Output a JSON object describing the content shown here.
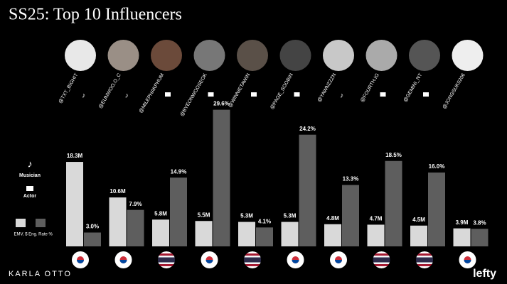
{
  "chart_data": {
    "type": "bar",
    "title": "SS25: Top 10 Influencers",
    "categories": [
      "@TXT_BIGHIT",
      "@EUNWOO.O_C",
      "@MILEPHAKPHUM",
      "@BYEONWOOSEOK",
      "@WINNIETAWIN",
      "@PAGE_SOOBIN",
      "@YAWNZZZN",
      "@FOURTH.IG",
      "@GEMINI_NT",
      "@JONGSUK0206"
    ],
    "series": [
      {
        "name": "EMV, $",
        "color": "#d9d9d9",
        "values": [
          18.3,
          10.6,
          5.8,
          5.5,
          5.3,
          5.3,
          4.8,
          4.7,
          4.5,
          3.9
        ],
        "value_labels": [
          "18.3M",
          "10.6M",
          "5.8M",
          "5.5M",
          "5.3M",
          "5.3M",
          "4.8M",
          "4.7M",
          "4.5M",
          "3.9M"
        ]
      },
      {
        "name": "Eng. Rate %",
        "color": "#5e5e5e",
        "values": [
          3.0,
          7.9,
          14.9,
          29.6,
          4.1,
          24.2,
          13.3,
          18.5,
          16.0,
          3.8
        ],
        "value_labels": [
          "3.0%",
          "7.9%",
          "14.9%",
          "29.6%",
          "4.1%",
          "24.2%",
          "13.3%",
          "18.5%",
          "16.0%",
          "3.8%"
        ]
      }
    ],
    "role_legend": [
      "Musician",
      "Actor"
    ],
    "footer_left": "KARLA OTTO",
    "footer_right": "lefty"
  }
}
